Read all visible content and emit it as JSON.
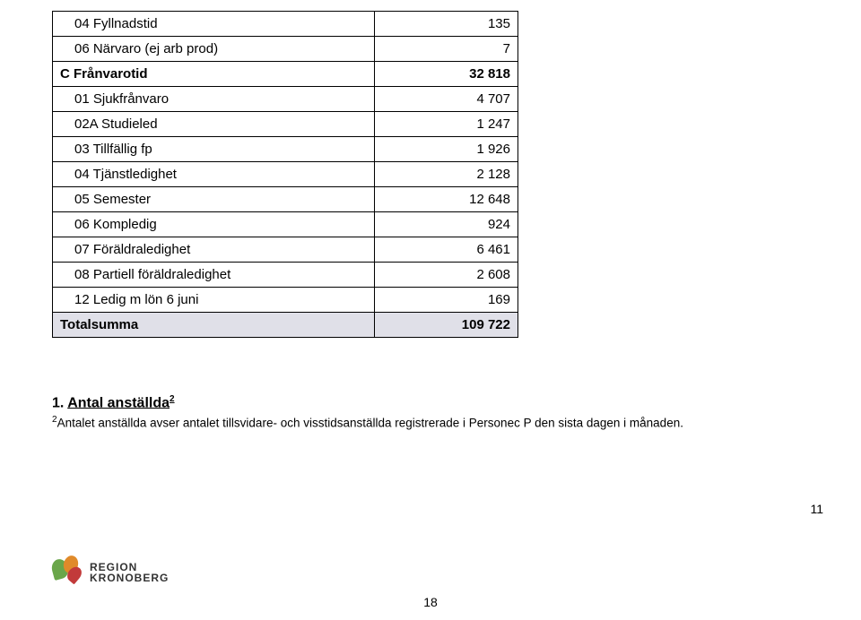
{
  "table": {
    "rows": [
      {
        "label": "04 Fyllnadstid",
        "value": "135",
        "type": "sub"
      },
      {
        "label": "06 Närvaro (ej arb prod)",
        "value": "7",
        "type": "sub"
      },
      {
        "label": "C Frånvarotid",
        "value": "32 818",
        "type": "section"
      },
      {
        "label": "01 Sjukfrånvaro",
        "value": "4 707",
        "type": "sub"
      },
      {
        "label": "02A Studieled",
        "value": "1 247",
        "type": "sub"
      },
      {
        "label": "03 Tillfällig fp",
        "value": "1 926",
        "type": "sub"
      },
      {
        "label": "04 Tjänstledighet",
        "value": "2 128",
        "type": "sub"
      },
      {
        "label": "05 Semester",
        "value": "12 648",
        "type": "sub"
      },
      {
        "label": "06 Kompledig",
        "value": "924",
        "type": "sub"
      },
      {
        "label": "07 Föräldraledighet",
        "value": "6 461",
        "type": "sub"
      },
      {
        "label": "08 Partiell föräldraledighet",
        "value": "2 608",
        "type": "sub"
      },
      {
        "label": "12 Ledig m lön 6 juni",
        "value": "169",
        "type": "sub"
      },
      {
        "label": "Totalsumma",
        "value": "109 722",
        "type": "total"
      }
    ],
    "border_color": "#000000",
    "total_bg": "#e0e0e8",
    "font_size": 15
  },
  "heading": {
    "number": "1.  ",
    "text": "Antal anställda",
    "sup": "2"
  },
  "footnote": {
    "sup": "2",
    "text": "Antalet anställda avser antalet tillsvidare- och visstidsanställda registrerade i Personec P den sista dagen i månaden."
  },
  "page_number_right": "11",
  "page_number_center": "18",
  "logo": {
    "line1": "REGION",
    "line2": "KRONOBERG",
    "green": "#6aa64a",
    "orange": "#e08a2a",
    "red": "#c23a3a"
  }
}
